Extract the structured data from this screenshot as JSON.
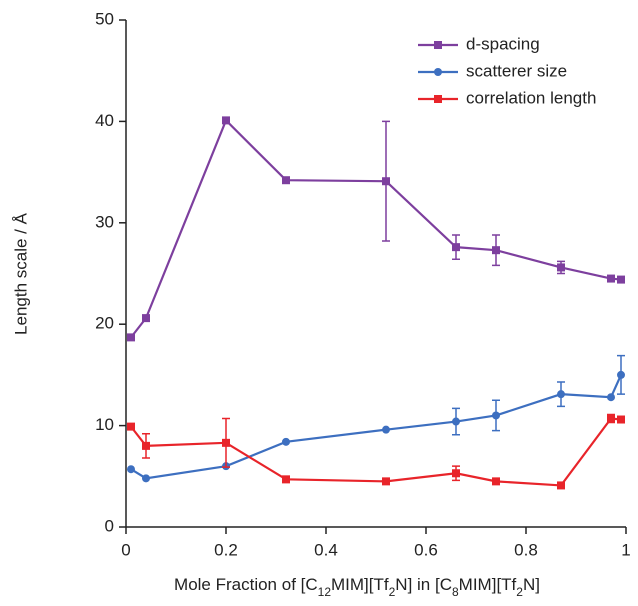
{
  "chart_data": {
    "type": "line",
    "xlabel": "Mole Fraction of [C12MIM][Tf2N] in [C8MIM][Tf2N]",
    "ylabel": "Length scale / Å",
    "xlim": [
      0,
      1
    ],
    "xticks": [
      0,
      {
        "value": 0.2,
        "label": "0.2"
      },
      {
        "value": 0.4,
        "label": "0.4"
      },
      {
        "value": 0.6,
        "label": "0.6"
      },
      {
        "value": 0.8,
        "label": "0.8"
      },
      1
    ],
    "ylim": [
      0,
      50
    ],
    "yticks": [
      0,
      10,
      20,
      30,
      40,
      50
    ],
    "legend": "upper right",
    "x": [
      0.01,
      0.04,
      0.2,
      0.32,
      0.52,
      0.66,
      0.74,
      0.87,
      0.97,
      0.99
    ],
    "series": [
      {
        "name": "d-spacing",
        "color": "#7d3f9e",
        "marker": "square",
        "values": [
          18.7,
          20.6,
          40.1,
          34.2,
          34.1,
          27.6,
          27.3,
          25.6,
          24.5,
          24.4
        ],
        "errors": [
          null,
          null,
          null,
          null,
          5.9,
          1.2,
          1.5,
          0.6,
          null,
          null
        ]
      },
      {
        "name": "scatterer size",
        "color": "#3d6fc0",
        "marker": "circle",
        "values": [
          5.7,
          4.8,
          6.0,
          8.4,
          9.6,
          10.4,
          11.0,
          13.1,
          12.8,
          15.0
        ],
        "errors": [
          null,
          null,
          null,
          null,
          null,
          1.3,
          1.5,
          1.2,
          null,
          1.9
        ]
      },
      {
        "name": "correlation length",
        "color": "#e8242a",
        "marker": "square",
        "values": [
          9.9,
          8.0,
          8.3,
          4.7,
          4.5,
          5.3,
          4.5,
          4.1,
          10.7,
          10.6
        ],
        "errors": [
          null,
          1.2,
          2.4,
          0.3,
          null,
          0.7,
          null,
          null,
          0.4,
          null
        ]
      }
    ]
  }
}
